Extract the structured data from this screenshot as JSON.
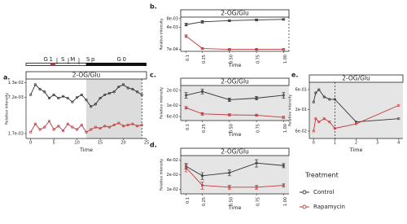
{
  "chart_data": [
    {
      "type": "line",
      "panel": "a.",
      "title": "2-OG/Glu",
      "phases": [
        "G1",
        "S",
        "M",
        "Sp",
        "G0"
      ],
      "x_label": "Time",
      "y_label": "Relative intensity",
      "log_y": true,
      "background": "#ffffff",
      "shaded_xrange": [
        12,
        24
      ],
      "dashed_x": 24,
      "x": [
        0,
        1,
        2,
        3,
        4,
        5,
        6,
        7,
        8,
        9,
        10,
        11,
        12,
        13,
        14,
        15,
        16,
        17,
        18,
        19,
        20,
        21,
        22,
        23,
        24
      ],
      "series": [
        {
          "name": "Control",
          "color": "#333333",
          "values": [
            0.008,
            0.012,
            0.01,
            0.009,
            0.007,
            0.008,
            0.007,
            0.0075,
            0.007,
            0.006,
            0.0072,
            0.008,
            0.0065,
            0.005,
            0.0055,
            0.007,
            0.008,
            0.0085,
            0.009,
            0.011,
            0.012,
            0.0105,
            0.01,
            0.009,
            0.008
          ]
        },
        {
          "name": "Rapamycin",
          "color": "#c0393b",
          "values": [
            0.0018,
            0.0025,
            0.002,
            0.0022,
            0.0028,
            0.002,
            0.0023,
            0.0019,
            0.0025,
            0.0022,
            0.002,
            0.0024,
            0.0018,
            0.002,
            0.0022,
            0.0021,
            0.0023,
            0.0022,
            0.0024,
            0.0026,
            0.0023,
            0.0024,
            0.0025,
            0.0023,
            0.0024
          ]
        }
      ],
      "xlim": [
        -1,
        25
      ],
      "xticks": [
        0,
        5,
        10,
        15,
        20,
        25
      ],
      "ylim": [
        0.0014,
        0.015
      ],
      "yticks": [
        {
          "value": 0.013,
          "label": "1.3e-02"
        },
        {
          "value": 0.0072,
          "label": "7.2e-03"
        },
        {
          "value": 0.0017,
          "label": "1.7e-03"
        }
      ]
    },
    {
      "type": "line",
      "panel": "b.",
      "title": "2-OG/Glu",
      "x_label": "Time",
      "y_label": "Relative intensity",
      "log_y": true,
      "background": "#ffffff",
      "dashed_x": 1.05,
      "x": [
        0.1,
        0.25,
        0.5,
        0.75,
        1.0
      ],
      "series": [
        {
          "name": "Control",
          "color": "#333333",
          "values": [
            0.005,
            0.0062,
            0.0068,
            0.0072,
            0.0075
          ],
          "errors": [
            0.0005,
            0.0006,
            0.0004,
            0.0006,
            0.0004
          ]
        },
        {
          "name": "Rapamycin",
          "color": "#c0393b",
          "values": [
            0.002,
            0.00075,
            0.0007,
            0.0007,
            0.0007
          ],
          "errors": [
            0.0002,
            5e-05,
            4e-05,
            4e-05,
            4e-05
          ]
        }
      ],
      "xlim": [
        0.05,
        1.05
      ],
      "xticks": [
        0.1,
        0.25,
        {
          "value": 0.5,
          "label": "0.50"
        },
        0.75,
        {
          "value": 1.0,
          "label": "1.00"
        }
      ],
      "ylim": [
        0.0006,
        0.009
      ],
      "yticks": [
        {
          "value": 0.008,
          "label": "8e-03"
        },
        {
          "value": 0.004,
          "label": "4e-03"
        },
        {
          "value": 0.0007,
          "label": "7e-04"
        }
      ]
    },
    {
      "type": "line",
      "panel": "c.",
      "title": "2-OG/Glu",
      "x_label": "Time",
      "y_label": "Relative intensity",
      "log_y": true,
      "background": "#e5e5e5",
      "x": [
        0.1,
        0.25,
        0.5,
        0.75,
        1.0
      ],
      "series": [
        {
          "name": "Control",
          "color": "#333333",
          "values": [
            0.016,
            0.019,
            0.013,
            0.014,
            0.016
          ],
          "errors": [
            0.002,
            0.002,
            0.001,
            0.001,
            0.002
          ]
        },
        {
          "name": "Rapamycin",
          "color": "#c0393b",
          "values": [
            0.009,
            0.0068,
            0.0065,
            0.0064,
            0.0058
          ],
          "errors": [
            0.0005,
            0.0004,
            0.0003,
            0.0003,
            0.0003
          ]
        }
      ],
      "xlim": [
        0.05,
        1.05
      ],
      "xticks": [
        0.1,
        0.25,
        {
          "value": 0.5,
          "label": "0.50"
        },
        0.75,
        {
          "value": 1.0,
          "label": "1.00"
        }
      ],
      "ylim": [
        0.005,
        0.025
      ],
      "yticks": [
        {
          "value": 0.02,
          "label": "2e-02"
        },
        {
          "value": 0.01,
          "label": "1e-02"
        },
        {
          "value": 0.006,
          "label": "6e-03"
        }
      ]
    },
    {
      "type": "line",
      "panel": "d.",
      "title": "2-OG/Glu",
      "x_label": "Time",
      "y_label": "Relative intensity",
      "log_y": true,
      "background": "#e5e5e5",
      "x": [
        0.1,
        0.25,
        0.5,
        0.75,
        1.0
      ],
      "series": [
        {
          "name": "Control",
          "color": "#333333",
          "values": [
            0.03,
            0.019,
            0.022,
            0.035,
            0.031
          ],
          "errors": [
            0.004,
            0.003,
            0.003,
            0.006,
            0.003
          ]
        },
        {
          "name": "Rapamycin",
          "color": "#c0393b",
          "values": [
            0.028,
            0.012,
            0.011,
            0.011,
            0.012
          ],
          "errors": [
            0.005,
            0.002,
            0.001,
            0.001,
            0.001
          ]
        }
      ],
      "xlim": [
        0.05,
        1.05
      ],
      "xticks": [
        0.1,
        0.25,
        {
          "value": 0.5,
          "label": "0.50"
        },
        0.75,
        {
          "value": 1.0,
          "label": "1.00"
        }
      ],
      "ylim": [
        0.008,
        0.05
      ],
      "yticks": [
        {
          "value": 0.04,
          "label": "4e-02"
        },
        {
          "value": 0.02,
          "label": "2e-02"
        },
        {
          "value": 0.01,
          "label": "1e-02"
        }
      ]
    },
    {
      "type": "line",
      "panel": "e.",
      "title": "2-OG/Glu",
      "x_label": "Time",
      "y_label": "Relative intensity",
      "log_y": true,
      "background": "#e5e5e5",
      "dashed_x": 1,
      "legend_title": "Treatment",
      "x": [
        0,
        0.1,
        0.25,
        0.5,
        0.75,
        1,
        2,
        4
      ],
      "series": [
        {
          "name": "Control",
          "color": "#333333",
          "values": [
            0.3,
            0.5,
            0.6,
            0.4,
            0.35,
            0.35,
            0.1,
            0.12
          ]
        },
        {
          "name": "Rapamycin",
          "color": "#c0393b",
          "values": [
            0.06,
            0.12,
            0.1,
            0.12,
            0.1,
            0.07,
            0.09,
            0.25
          ]
        }
      ],
      "xlim": [
        -0.2,
        4.2
      ],
      "xticks": [
        0,
        1,
        2,
        3,
        4
      ],
      "ylim": [
        0.04,
        0.9
      ],
      "yticks": [
        {
          "value": 0.6,
          "label": "6e-01"
        },
        {
          "value": 0.2,
          "label": "2e-01"
        },
        {
          "value": 0.06,
          "label": "6e-02"
        }
      ]
    }
  ]
}
